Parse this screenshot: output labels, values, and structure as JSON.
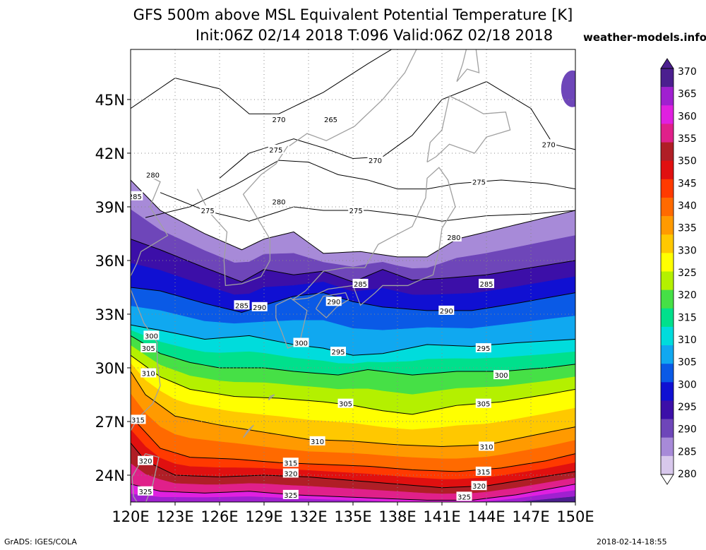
{
  "title": {
    "line1": "GFS 500m above MSL Equivalent Potential Temperature [K]",
    "line2": "Init:06Z 02/14 2018 T:096 Valid:06Z 02/18 2018",
    "brand": "weather-models.info"
  },
  "footer": {
    "credit": "GrADS: IGES/COLA",
    "timestamp": "2018-02-14-18:55"
  },
  "map": {
    "lat_labels": [
      "45N",
      "42N",
      "39N",
      "36N",
      "33N",
      "30N",
      "27N",
      "24N"
    ],
    "lat_values": [
      45,
      42,
      39,
      36,
      33,
      30,
      27,
      24
    ],
    "lon_labels": [
      "120E",
      "123E",
      "126E",
      "129E",
      "132E",
      "135E",
      "138E",
      "141E",
      "144E",
      "147E",
      "150E"
    ],
    "lon_values": [
      120,
      123,
      126,
      129,
      132,
      135,
      138,
      141,
      144,
      147,
      150
    ],
    "contour_labels": [
      {
        "text": "265",
        "lon": 133.5,
        "lat": 43.9
      },
      {
        "text": "270",
        "lon": 130.0,
        "lat": 43.9
      },
      {
        "text": "270",
        "lon": 136.5,
        "lat": 41.6
      },
      {
        "text": "270",
        "lon": 148.2,
        "lat": 42.5
      },
      {
        "text": "275",
        "lon": 129.8,
        "lat": 42.2
      },
      {
        "text": "275",
        "lon": 125.2,
        "lat": 38.8
      },
      {
        "text": "275",
        "lon": 135.2,
        "lat": 38.8
      },
      {
        "text": "275",
        "lon": 143.5,
        "lat": 40.4
      },
      {
        "text": "280",
        "lon": 121.5,
        "lat": 40.8
      },
      {
        "text": "280",
        "lon": 130.0,
        "lat": 39.3
      },
      {
        "text": "280",
        "lon": 141.8,
        "lat": 37.3
      },
      {
        "text": "285",
        "lon": 120.3,
        "lat": 39.6
      },
      {
        "text": "285",
        "lon": 127.5,
        "lat": 33.5
      },
      {
        "text": "285",
        "lon": 135.5,
        "lat": 34.7
      },
      {
        "text": "285",
        "lon": 144.0,
        "lat": 34.7
      },
      {
        "text": "290",
        "lon": 128.7,
        "lat": 33.4
      },
      {
        "text": "290",
        "lon": 133.7,
        "lat": 33.7
      },
      {
        "text": "290",
        "lon": 141.3,
        "lat": 33.2
      },
      {
        "text": "295",
        "lon": 134.0,
        "lat": 30.9
      },
      {
        "text": "295",
        "lon": 143.8,
        "lat": 31.1
      },
      {
        "text": "300",
        "lon": 121.4,
        "lat": 31.8
      },
      {
        "text": "300",
        "lon": 131.5,
        "lat": 31.4
      },
      {
        "text": "300",
        "lon": 145.0,
        "lat": 29.6
      },
      {
        "text": "305",
        "lon": 121.2,
        "lat": 31.1
      },
      {
        "text": "305",
        "lon": 134.5,
        "lat": 28.0
      },
      {
        "text": "305",
        "lon": 143.8,
        "lat": 28.0
      },
      {
        "text": "310",
        "lon": 121.2,
        "lat": 29.7
      },
      {
        "text": "310",
        "lon": 132.6,
        "lat": 25.9
      },
      {
        "text": "310",
        "lon": 144.0,
        "lat": 25.6
      },
      {
        "text": "315",
        "lon": 120.5,
        "lat": 27.1
      },
      {
        "text": "315",
        "lon": 130.8,
        "lat": 24.7
      },
      {
        "text": "315",
        "lon": 143.8,
        "lat": 24.2
      },
      {
        "text": "320",
        "lon": 121.0,
        "lat": 24.8
      },
      {
        "text": "320",
        "lon": 130.8,
        "lat": 24.1
      },
      {
        "text": "320",
        "lon": 143.5,
        "lat": 23.4
      },
      {
        "text": "325",
        "lon": 121.0,
        "lat": 23.1
      },
      {
        "text": "325",
        "lon": 130.8,
        "lat": 22.9
      },
      {
        "text": "325",
        "lon": 142.5,
        "lat": 22.8
      }
    ]
  },
  "colorbar": {
    "labels": [
      "370",
      "365",
      "360",
      "355",
      "350",
      "345",
      "340",
      "335",
      "330",
      "325",
      "320",
      "315",
      "310",
      "305",
      "300",
      "295",
      "290",
      "285",
      "280"
    ],
    "colors": [
      "#4b1f8f",
      "#a020d0",
      "#e020e0",
      "#e0208a",
      "#b01e26",
      "#e01010",
      "#ff3a00",
      "#ff6a00",
      "#ff9a00",
      "#ffc800",
      "#ffff00",
      "#b4f000",
      "#46e046",
      "#00e08c",
      "#00dcdc",
      "#10a8f0",
      "#0a5ae6",
      "#1010d2",
      "#3c0fa8",
      "#6e46b9",
      "#a78ad8",
      "#d8c8ec"
    ]
  }
}
